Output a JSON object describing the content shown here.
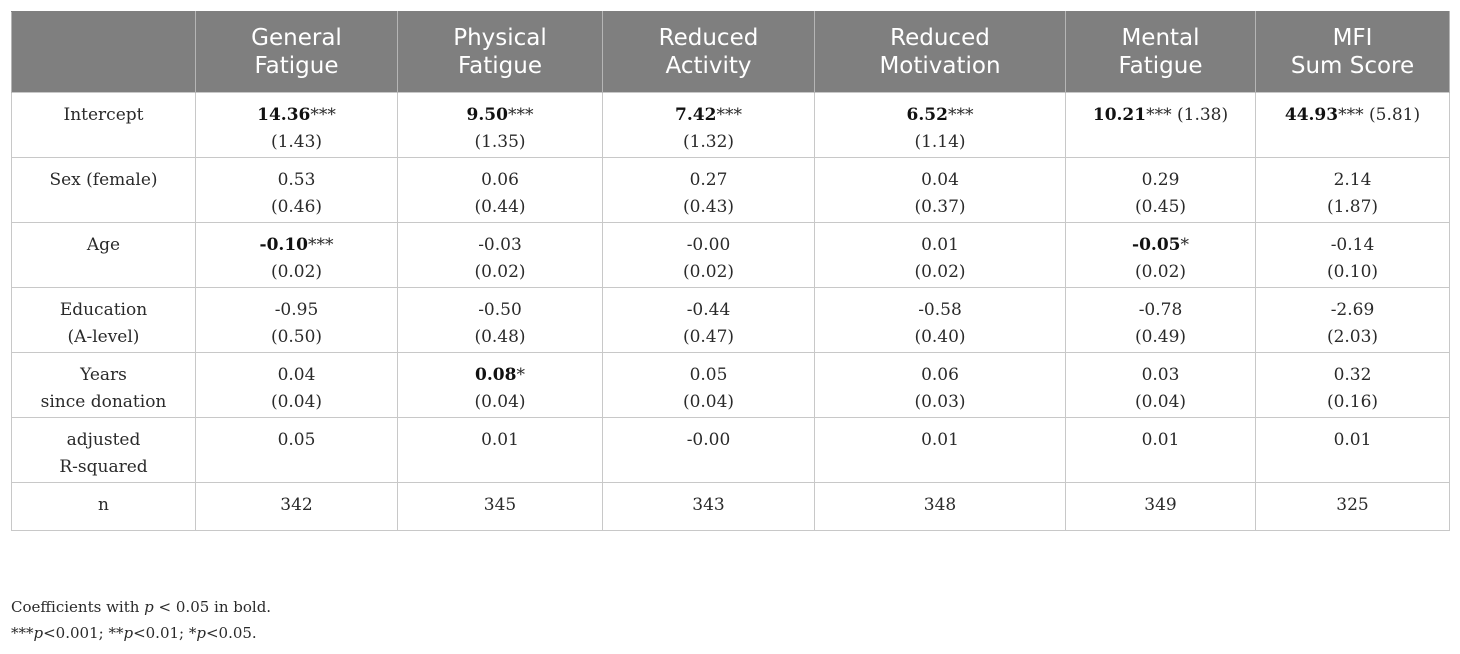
{
  "table": {
    "columns": [
      {
        "label": [
          "",
          ""
        ]
      },
      {
        "label": [
          "General",
          "Fatigue"
        ]
      },
      {
        "label": [
          "Physical",
          "Fatigue"
        ]
      },
      {
        "label": [
          "Reduced",
          "Activity"
        ]
      },
      {
        "label": [
          "Reduced",
          "Motivation"
        ]
      },
      {
        "label": [
          "Mental",
          "Fatigue"
        ]
      },
      {
        "label": [
          "MFI",
          "Sum Score"
        ]
      }
    ],
    "rows": [
      {
        "label": [
          "Intercept"
        ],
        "cells": [
          {
            "coef": "14.36",
            "stars": "***",
            "se": "(1.43)",
            "bold": true,
            "inline": false
          },
          {
            "coef": "9.50",
            "stars": "***",
            "se": "(1.35)",
            "bold": true,
            "inline": false
          },
          {
            "coef": "7.42",
            "stars": "***",
            "se": "(1.32)",
            "bold": true,
            "inline": false
          },
          {
            "coef": "6.52",
            "stars": "***",
            "se": "(1.14)",
            "bold": true,
            "inline": false
          },
          {
            "coef": "10.21",
            "stars": "***",
            "se": "(1.38)",
            "bold": true,
            "inline": true
          },
          {
            "coef": "44.93",
            "stars": "***",
            "se": "(5.81)",
            "bold": true,
            "inline": true
          }
        ]
      },
      {
        "label": [
          "Sex (female)"
        ],
        "cells": [
          {
            "coef": "0.53",
            "stars": "",
            "se": "(0.46)",
            "bold": false,
            "inline": false
          },
          {
            "coef": "0.06",
            "stars": "",
            "se": "(0.44)",
            "bold": false,
            "inline": false
          },
          {
            "coef": "0.27",
            "stars": "",
            "se": "(0.43)",
            "bold": false,
            "inline": false
          },
          {
            "coef": "0.04",
            "stars": "",
            "se": "(0.37)",
            "bold": false,
            "inline": false
          },
          {
            "coef": "0.29",
            "stars": "",
            "se": "(0.45)",
            "bold": false,
            "inline": false
          },
          {
            "coef": "2.14",
            "stars": "",
            "se": "(1.87)",
            "bold": false,
            "inline": false
          }
        ]
      },
      {
        "label": [
          "Age"
        ],
        "cells": [
          {
            "coef": "-0.10",
            "stars": "***",
            "se": "(0.02)",
            "bold": true,
            "inline": false
          },
          {
            "coef": "-0.03",
            "stars": "",
            "se": "(0.02)",
            "bold": false,
            "inline": false
          },
          {
            "coef": "-0.00",
            "stars": "",
            "se": "(0.02)",
            "bold": false,
            "inline": false
          },
          {
            "coef": "0.01",
            "stars": "",
            "se": "(0.02)",
            "bold": false,
            "inline": false
          },
          {
            "coef": "-0.05",
            "stars": "*",
            "se": "(0.02)",
            "bold": true,
            "inline": false
          },
          {
            "coef": "-0.14",
            "stars": "",
            "se": "(0.10)",
            "bold": false,
            "inline": false
          }
        ]
      },
      {
        "label": [
          "Education",
          "(A-level)"
        ],
        "cells": [
          {
            "coef": "-0.95",
            "stars": "",
            "se": "(0.50)",
            "bold": false,
            "inline": false
          },
          {
            "coef": "-0.50",
            "stars": "",
            "se": "(0.48)",
            "bold": false,
            "inline": false
          },
          {
            "coef": "-0.44",
            "stars": "",
            "se": "(0.47)",
            "bold": false,
            "inline": false
          },
          {
            "coef": "-0.58",
            "stars": "",
            "se": "(0.40)",
            "bold": false,
            "inline": false
          },
          {
            "coef": "-0.78",
            "stars": "",
            "se": "(0.49)",
            "bold": false,
            "inline": false
          },
          {
            "coef": "-2.69",
            "stars": "",
            "se": "(2.03)",
            "bold": false,
            "inline": false
          }
        ]
      },
      {
        "label": [
          "Years",
          "since donation"
        ],
        "cells": [
          {
            "coef": "0.04",
            "stars": "",
            "se": "(0.04)",
            "bold": false,
            "inline": false
          },
          {
            "coef": "0.08",
            "stars": "*",
            "se": "(0.04)",
            "bold": true,
            "inline": false
          },
          {
            "coef": "0.05",
            "stars": "",
            "se": "(0.04)",
            "bold": false,
            "inline": false
          },
          {
            "coef": "0.06",
            "stars": "",
            "se": "(0.03)",
            "bold": false,
            "inline": false
          },
          {
            "coef": "0.03",
            "stars": "",
            "se": "(0.04)",
            "bold": false,
            "inline": false
          },
          {
            "coef": "0.32",
            "stars": "",
            "se": "(0.16)",
            "bold": false,
            "inline": false
          }
        ]
      },
      {
        "label": [
          "adjusted",
          "R-squared"
        ],
        "cells": [
          {
            "coef": "0.05",
            "stars": "",
            "se": "",
            "bold": false,
            "inline": false
          },
          {
            "coef": "0.01",
            "stars": "",
            "se": "",
            "bold": false,
            "inline": false
          },
          {
            "coef": "-0.00",
            "stars": "",
            "se": "",
            "bold": false,
            "inline": false
          },
          {
            "coef": "0.01",
            "stars": "",
            "se": "",
            "bold": false,
            "inline": false
          },
          {
            "coef": "0.01",
            "stars": "",
            "se": "",
            "bold": false,
            "inline": false
          },
          {
            "coef": "0.01",
            "stars": "",
            "se": "",
            "bold": false,
            "inline": false
          }
        ]
      },
      {
        "label": [
          "n"
        ],
        "cells": [
          {
            "coef": "342",
            "stars": "",
            "se": "",
            "bold": false,
            "inline": false
          },
          {
            "coef": "345",
            "stars": "",
            "se": "",
            "bold": false,
            "inline": false
          },
          {
            "coef": "343",
            "stars": "",
            "se": "",
            "bold": false,
            "inline": false
          },
          {
            "coef": "348",
            "stars": "",
            "se": "",
            "bold": false,
            "inline": false
          },
          {
            "coef": "349",
            "stars": "",
            "se": "",
            "bold": false,
            "inline": false
          },
          {
            "coef": "325",
            "stars": "",
            "se": "",
            "bold": false,
            "inline": false
          }
        ]
      }
    ]
  },
  "footnotes": {
    "note1_before": "Coefficients with ",
    "note1_p": "p",
    "note1_after": " < 0.05 in bold.",
    "note2_a": "***",
    "note2_p1": "p",
    "note2_b": "<0.001; **",
    "note2_p2": "p",
    "note2_c": "<0.01; *",
    "note2_p3": "p",
    "note2_d": "<0.05."
  }
}
